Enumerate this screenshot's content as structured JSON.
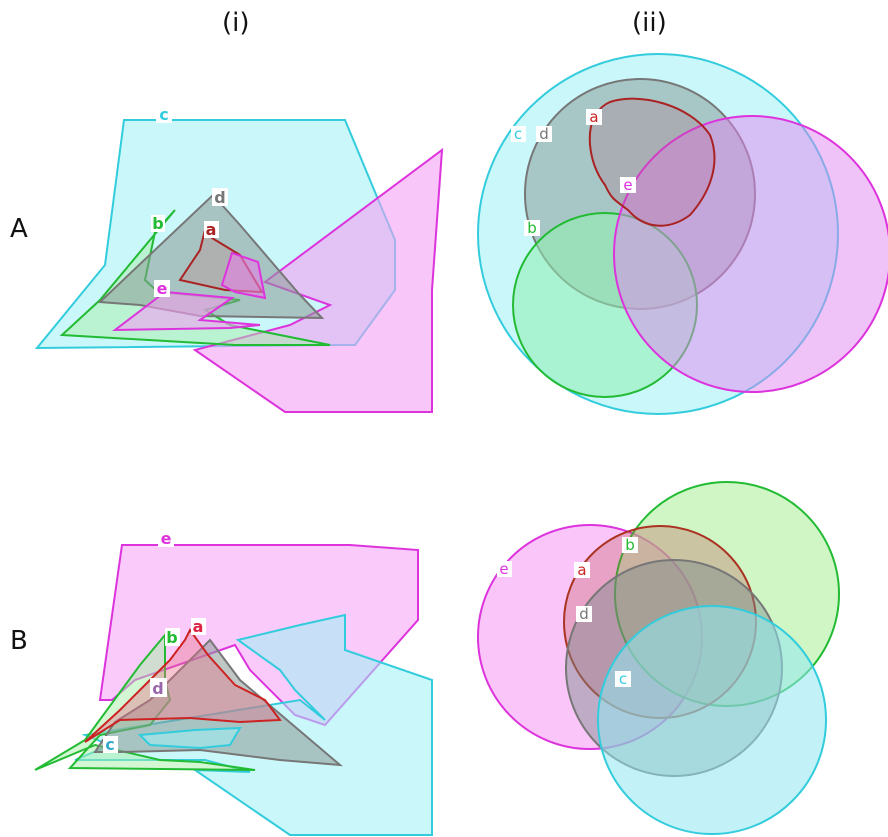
{
  "columns": [
    "(i)",
    "(ii)"
  ],
  "rows": [
    "A",
    "B"
  ],
  "colors": {
    "a": "#cc2222",
    "b": "#22bb33",
    "c": "#33ccdd",
    "d": "#777777",
    "e": "#dd33dd"
  },
  "panels": {
    "A_i": {
      "labels": [
        "c",
        "d",
        "b",
        "a",
        "e"
      ]
    },
    "A_ii": {
      "labels": [
        "c",
        "d",
        "a",
        "e",
        "b"
      ]
    },
    "B_i": {
      "labels": [
        "e",
        "b",
        "a",
        "d",
        "c"
      ]
    },
    "B_ii": {
      "labels": [
        "e",
        "a",
        "b",
        "d",
        "c"
      ]
    }
  }
}
